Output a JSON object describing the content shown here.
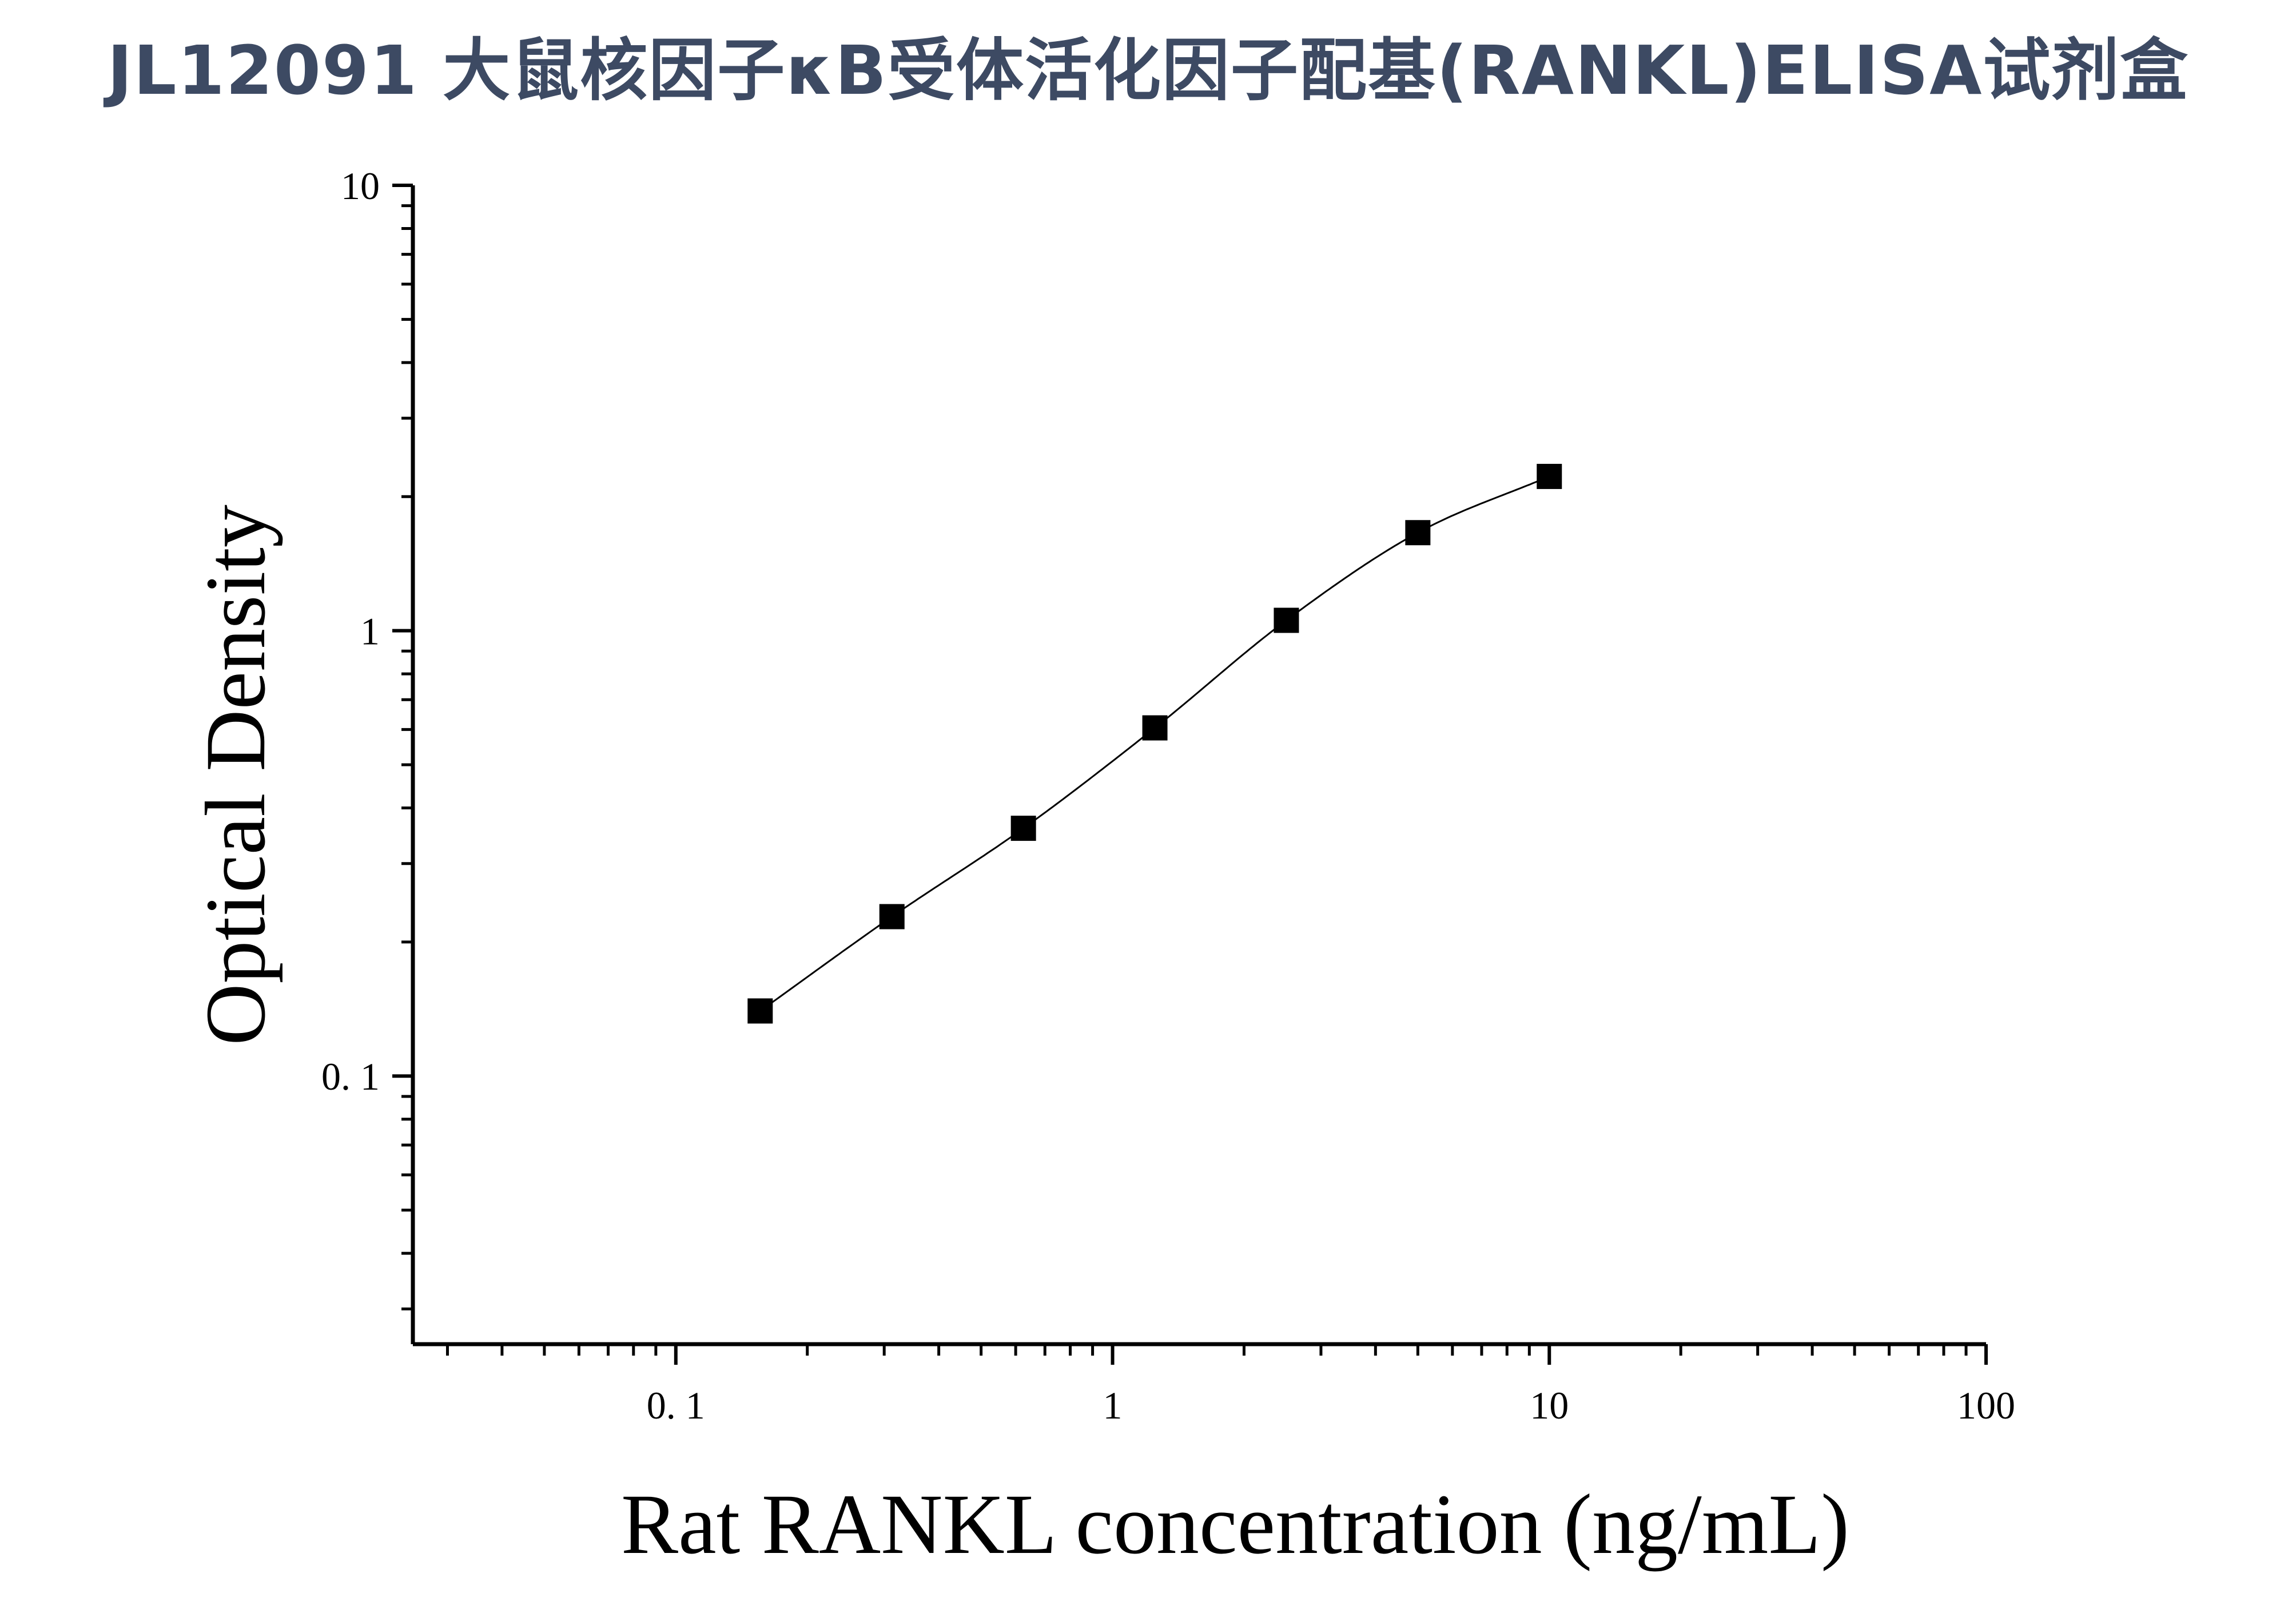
{
  "title": "JL12091 大鼠核因子κB受体活化因子配基(RANKL)ELISA试剂盒",
  "chart_data": {
    "type": "scatter",
    "title": "JL12091 大鼠核因子κB受体活化因子配基(RANKL)ELISA试剂盒",
    "xlabel": "Rat RANKL concentration (ng/mL)",
    "ylabel": "Optical Density",
    "xscale": "log",
    "yscale": "log",
    "xlim": [
      0.025,
      100
    ],
    "ylim": [
      0.025,
      10
    ],
    "x_ticks": [
      0.1,
      1,
      10,
      100
    ],
    "x_tick_labels": [
      "0. 1",
      "1",
      "10",
      "100"
    ],
    "y_ticks": [
      0.1,
      1,
      10
    ],
    "y_tick_labels": [
      "0. 1",
      "1",
      "10"
    ],
    "grid": false,
    "legend": "none",
    "marker": "square",
    "marker_color": "#000000",
    "line_color": "#000000",
    "series": [
      {
        "x": [
          0.156,
          0.3125,
          0.625,
          1.25,
          2.5,
          5,
          10
        ],
        "y": [
          0.14,
          0.228,
          0.36,
          0.605,
          1.055,
          1.66,
          2.22
        ],
        "fit": "4PL curve"
      }
    ]
  }
}
